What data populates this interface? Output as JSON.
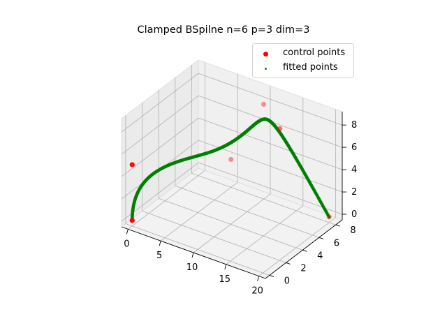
{
  "chart_data": {
    "type": "scatter",
    "projection": "3d",
    "title": "Clamped BSpilne n=6 p=3 dim=3",
    "xlabel": "",
    "ylabel": "",
    "zlabel": "",
    "xlim": [
      -1,
      21
    ],
    "ylim": [
      -0.5,
      8.8
    ],
    "zlim": [
      -0.5,
      9.2
    ],
    "xticks": [
      0,
      5,
      10,
      15,
      20
    ],
    "yticks": [
      0,
      2,
      4,
      6,
      8
    ],
    "zticks": [
      0,
      2,
      4,
      6,
      8
    ],
    "grid": true,
    "legend_position": "top-right",
    "series": [
      {
        "name": "control points",
        "color": "#ff0000",
        "marker": "circle",
        "points": [
          {
            "x": 0,
            "y": 0,
            "z": 0
          },
          {
            "x": 0,
            "y": 0,
            "z": 5
          },
          {
            "x": 5,
            "y": 8,
            "z": 2
          },
          {
            "x": 10,
            "y": 8,
            "z": 8
          },
          {
            "x": 15,
            "y": 6,
            "z": 8
          },
          {
            "x": 20,
            "y": 8,
            "z": 0
          }
        ]
      },
      {
        "name": "fitted points",
        "color": "#008000",
        "marker": "dot",
        "degree": 3,
        "knots": [
          0,
          0,
          0,
          0,
          0.3333,
          0.6667,
          1,
          1,
          1,
          1
        ],
        "samples": 400
      }
    ]
  }
}
